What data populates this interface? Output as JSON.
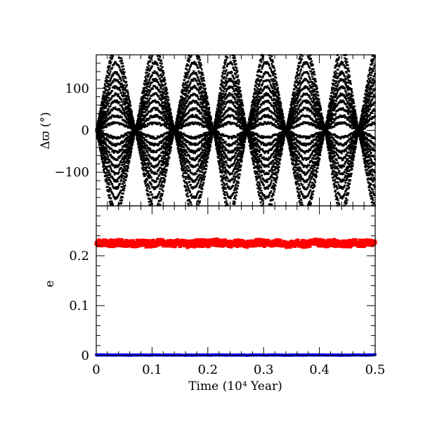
{
  "chart_data": [
    {
      "type": "scatter",
      "panel": "top",
      "ylabel": "Δϖ (°)",
      "ylim": [
        -180,
        180
      ],
      "xlim": [
        0,
        0.5
      ],
      "y_ticks": [
        -100,
        0,
        100
      ],
      "y_tick_labels": [
        "−100",
        "0",
        "100"
      ],
      "x_tick_labels_shown": false,
      "marker_color": "#000000",
      "pattern": {
        "description_values": "resonant angle libration; node period in x units",
        "nodes_x": [
          0.0,
          0.07,
          0.14,
          0.21,
          0.27,
          0.34,
          0.41,
          0.47
        ],
        "envelope_amplitudes_deg": [
          15,
          30,
          45,
          60,
          75,
          90,
          105,
          120,
          140,
          160,
          175
        ],
        "symmetric_about_zero": true
      }
    },
    {
      "type": "scatter",
      "panel": "bottom",
      "xlabel": "Time (10⁴ Year)",
      "ylabel": "e",
      "xlim": [
        0,
        0.5
      ],
      "ylim": [
        0,
        0.3
      ],
      "x_ticks": [
        0,
        0.1,
        0.2,
        0.3,
        0.4,
        0.5
      ],
      "x_tick_labels": [
        "0",
        "0.1",
        "0.2",
        "0.3",
        "0.4",
        "0.5"
      ],
      "y_ticks": [
        0,
        0.1,
        0.2
      ],
      "y_tick_labels": [
        "0",
        "0.1",
        "0.2"
      ],
      "series": [
        {
          "color": "#ff0000",
          "mean": 0.225,
          "spread": 0.008
        },
        {
          "color": "#0000ff",
          "mean": 0.001,
          "spread": 0.001
        }
      ]
    }
  ]
}
